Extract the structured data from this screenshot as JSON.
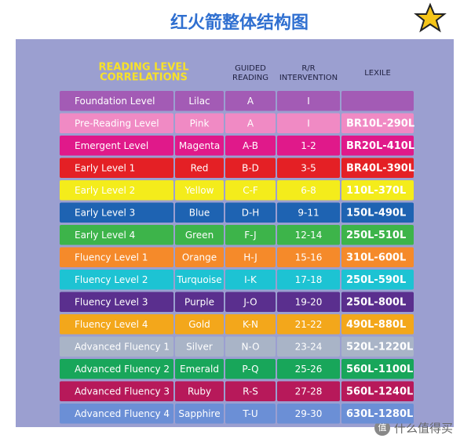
{
  "header": {
    "title": "红火箭整体结构图"
  },
  "table": {
    "title_lines": [
      "READING LEVEL",
      "CORRELATIONS"
    ],
    "columns": [
      [
        "GUIDED",
        "READING"
      ],
      [
        "R/R",
        "INTERVENTION"
      ],
      [
        "LEXILE"
      ]
    ],
    "rows": [
      {
        "color": "#a35bb5",
        "cells": [
          "Foundation Level",
          "Lilac",
          "A",
          "I"
        ]
      },
      {
        "color": "#f08ac4",
        "cells": [
          "Pre-Reading Level",
          "Pink",
          "A",
          "I",
          "BR10L-290L"
        ]
      },
      {
        "color": "#e0198a",
        "cells": [
          "Emergent Level",
          "Magenta",
          "A-B",
          "1-2",
          "BR20L-410L"
        ]
      },
      {
        "color": "#e42025",
        "cells": [
          "Early Level 1",
          "Red",
          "B-D",
          "3-5",
          "BR40L-390L"
        ]
      },
      {
        "color": "#f4ec1b",
        "cells": [
          "Early Level 2",
          "Yellow",
          "C-F",
          "6-8",
          "110L-370L"
        ]
      },
      {
        "color": "#1e63b2",
        "cells": [
          "Early Level 3",
          "Blue",
          "D-H",
          "9-11",
          "150L-490L"
        ]
      },
      {
        "color": "#3db44a",
        "cells": [
          "Early Level 4",
          "Green",
          "F-J",
          "12-14",
          "250L-510L"
        ]
      },
      {
        "color": "#f58a2a",
        "cells": [
          "Fluency Level 1",
          "Orange",
          "H-J",
          "15-16",
          "310L-600L"
        ]
      },
      {
        "color": "#1dc3d3",
        "cells": [
          "Fluency Level 2",
          "Turquoise",
          "I-K",
          "17-18",
          "250L-590L"
        ]
      },
      {
        "color": "#5a2f8e",
        "cells": [
          "Fluency Level 3",
          "Purple",
          "J-O",
          "19-20",
          "250L-800L"
        ]
      },
      {
        "color": "#f3a71b",
        "cells": [
          "Fluency Level 4",
          "Gold",
          "K-N",
          "21-22",
          "490L-880L"
        ]
      },
      {
        "color": "#a9b4c7",
        "cells": [
          "Advanced Fluency 1",
          "Silver",
          "N-O",
          "23-24",
          "520L-1220L"
        ]
      },
      {
        "color": "#18a65a",
        "cells": [
          "Advanced Fluency 2",
          "Emerald",
          "P-Q",
          "25-26",
          "560L-1100L"
        ]
      },
      {
        "color": "#b7195a",
        "cells": [
          "Advanced Fluency 3",
          "Ruby",
          "R-S",
          "27-28",
          "560L-1240L"
        ]
      },
      {
        "color": "#6b8fd6",
        "cells": [
          "Advanced Fluency 4",
          "Sapphire",
          "T-U",
          "29-30",
          "630L-1280L"
        ]
      }
    ]
  },
  "watermark": {
    "icon": "值",
    "text": "什么值得买"
  }
}
